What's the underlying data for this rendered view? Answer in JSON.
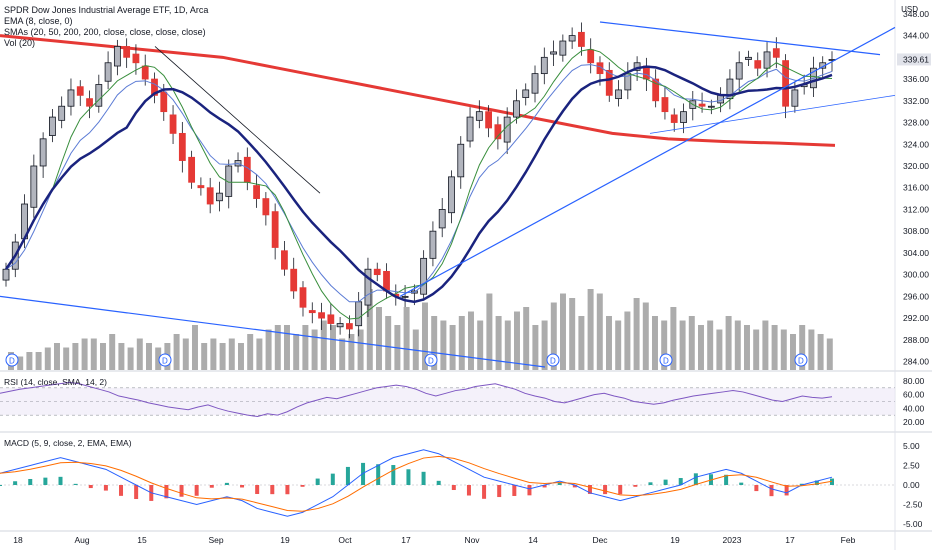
{
  "header": {
    "title": "SPDR Dow Jones Industrial Average ETF, 1D, Arca",
    "indicators": [
      "EMA (8, close, 0)",
      "SMAs (20, 50, 200, 200, close, close, close, close)",
      "Vol (20)"
    ],
    "currency": "USD"
  },
  "rsi_label": "RSI (14, close, SMA, 14, 2)",
  "macd_label": "MACD (5, 9, close, 2, EMA, EMA)",
  "dividend_marker": "D",
  "colors": {
    "up": "#b2b5be",
    "up_border": "#131722",
    "down": "#e53935",
    "ema8": "#5b7bd5",
    "sma20": "#388e3c",
    "sma50": "#1a237e",
    "sma200": "#e53935",
    "trendline": "#2962ff",
    "volume": "#9e9e9e",
    "rsi": "#7e57c2",
    "macd": "#2962ff",
    "signal": "#ff6d00",
    "hist_pos": "#26a69a",
    "hist_neg": "#ef5350"
  },
  "chart_data": {
    "type": "candlestick",
    "price_ticks": [
      "348.00",
      "344.00",
      "339.61",
      "336.00",
      "332.00",
      "328.00",
      "324.00",
      "320.00",
      "316.00",
      "312.00",
      "308.00",
      "304.00",
      "300.00",
      "296.00",
      "292.00",
      "288.00",
      "284.00"
    ],
    "rsi_ticks": [
      "80.00",
      "60.00",
      "40.00",
      "20.00"
    ],
    "macd_ticks": [
      "5.00",
      "2.50",
      "0.00",
      "-2.50",
      "-5.00"
    ],
    "x_labels": [
      "18",
      "Aug",
      "15",
      "Sep",
      "19",
      "Oct",
      "17",
      "Nov",
      "14",
      "Dec",
      "19",
      "2023",
      "17",
      "Feb"
    ],
    "last_price": 339.61,
    "ylim_price": [
      283,
      350
    ],
    "ylim_rsi": [
      20,
      80
    ],
    "ylim_macd": [
      -5.5,
      5.5
    ],
    "candles_approx_close": [
      301,
      306,
      313,
      320,
      325,
      329,
      331,
      334,
      333,
      331,
      335,
      339,
      342,
      340,
      339,
      336,
      333,
      330,
      326,
      321,
      317,
      316,
      313,
      315,
      320,
      321,
      317,
      314,
      311,
      305,
      301,
      297,
      294,
      293,
      292,
      291,
      291,
      290,
      295,
      301,
      300,
      297,
      296,
      296,
      297,
      303,
      308,
      312,
      318,
      324,
      329,
      330,
      327,
      325,
      329,
      332,
      334,
      337,
      340,
      341,
      343,
      344,
      342,
      339,
      337,
      333,
      334,
      337,
      339,
      336,
      332,
      330,
      328,
      330,
      332,
      331,
      331,
      333,
      336,
      339,
      340,
      338,
      341,
      340,
      331,
      334,
      335,
      338,
      339,
      339.61
    ],
    "sma200_approx": [
      344,
      343,
      342,
      341,
      340,
      338,
      336,
      334,
      332,
      330,
      328,
      326,
      325,
      324.5,
      324.2,
      323.8
    ],
    "volume_relative": [
      0.2,
      0.15,
      0.2,
      0.2,
      0.25,
      0.3,
      0.25,
      0.3,
      0.35,
      0.35,
      0.3,
      0.4,
      0.3,
      0.25,
      0.35,
      0.3,
      0.25,
      0.3,
      0.4,
      0.35,
      0.5,
      0.3,
      0.35,
      0.3,
      0.35,
      0.3,
      0.4,
      0.35,
      0.45,
      0.5,
      0.5,
      0.4,
      0.5,
      0.45,
      0.55,
      0.5,
      0.35,
      0.4,
      0.45,
      0.9,
      0.7,
      0.6,
      0.5,
      0.7,
      0.45,
      0.75,
      0.6,
      0.55,
      0.5,
      0.6,
      0.65,
      0.55,
      0.85,
      0.6,
      0.55,
      0.65,
      0.7,
      0.5,
      0.55,
      0.75,
      0.85,
      0.8,
      0.6,
      0.9,
      0.85,
      0.6,
      0.55,
      0.65,
      0.8,
      0.75,
      0.6,
      0.55,
      0.7,
      0.55,
      0.6,
      0.5,
      0.55,
      0.45,
      0.6,
      0.55,
      0.5,
      0.45,
      0.55,
      0.5,
      0.45,
      0.4,
      0.5,
      0.45,
      0.4,
      0.35
    ],
    "rsi_approx": [
      62,
      65,
      68,
      70,
      72,
      74,
      76,
      78,
      76,
      72,
      68,
      64,
      58,
      55,
      52,
      48,
      45,
      42,
      40,
      38,
      42,
      45,
      40,
      36,
      33,
      30,
      28,
      32,
      30,
      35,
      42,
      48,
      52,
      56,
      54,
      58,
      62,
      66,
      70,
      72,
      74,
      72,
      68,
      62,
      58,
      62,
      66,
      68,
      72,
      74,
      76,
      72,
      68,
      62,
      58,
      55,
      50,
      48,
      52,
      56,
      60,
      62,
      58,
      55,
      50,
      48,
      46,
      48,
      52,
      55,
      58,
      60,
      62,
      64,
      66,
      64,
      60,
      56,
      52,
      50,
      54,
      58,
      56,
      55,
      57
    ],
    "macd_approx": [
      1.5,
      2.0,
      2.5,
      3.0,
      3.5,
      3.0,
      2.5,
      2.0,
      1.0,
      0.0,
      -1.0,
      -1.5,
      -2.0,
      -2.5,
      -2.0,
      -1.5,
      -2.0,
      -3.0,
      -3.5,
      -4.0,
      -3.5,
      -2.5,
      -1.5,
      0.0,
      1.5,
      2.5,
      3.5,
      4.0,
      4.5,
      4.0,
      3.0,
      2.0,
      1.0,
      0.5,
      0.0,
      -0.5,
      0.0,
      0.5,
      0.0,
      -1.0,
      -1.5,
      -2.0,
      -1.5,
      -1.0,
      -0.5,
      0.0,
      1.0,
      1.5,
      2.0,
      1.5,
      0.5,
      -0.5,
      -1.0,
      0.0,
      0.5,
      1.0
    ]
  }
}
